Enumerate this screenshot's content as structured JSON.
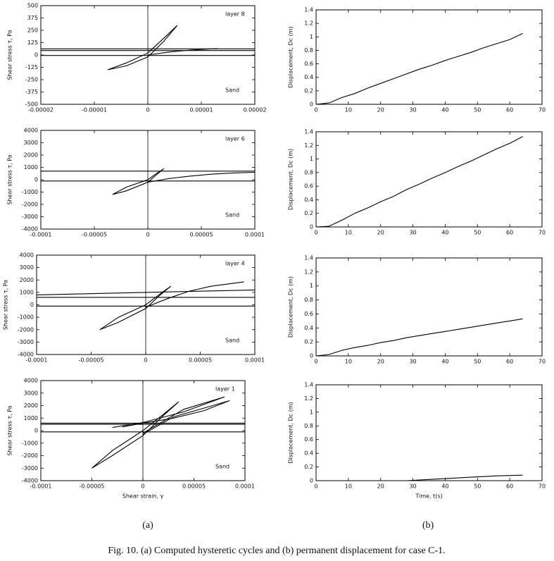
{
  "chart_data": [
    {
      "type": "line",
      "ylabel": "Shear stress τ,  Pa",
      "annotations": [
        "layer 8",
        "Sand"
      ],
      "xlim": [
        -2e-05,
        2e-05
      ],
      "xticks": [
        -2e-05,
        -1e-05,
        0,
        1e-05,
        2e-05
      ],
      "ylim": [
        -500,
        500
      ],
      "yticks": [
        -500,
        -375,
        -250,
        -125,
        0,
        125,
        250,
        375,
        500
      ],
      "series": [
        {
          "color": "#000000",
          "x": [
            -2e-05,
            2e-05
          ],
          "values": [
            62,
            62
          ]
        },
        {
          "color": "#000000",
          "x": [
            -2e-05,
            2e-05
          ],
          "values": [
            45,
            45
          ]
        },
        {
          "color": "#000000",
          "x": [
            -2e-05,
            2e-05
          ],
          "values": [
            -5,
            -5
          ]
        },
        {
          "color": "#000000",
          "x": [
            -7.5e-06,
            -4e-06,
            0,
            3e-06,
            5.5e-06,
            3e-06,
            0,
            -4e-06,
            -7.5e-06
          ],
          "values": [
            -150,
            -110,
            -20,
            140,
            300,
            170,
            20,
            -80,
            -150
          ]
        },
        {
          "color": "#000000",
          "x": [
            0,
            4e-06,
            8e-06,
            1.3e-05
          ],
          "values": [
            0,
            30,
            50,
            65
          ]
        }
      ]
    },
    {
      "type": "line",
      "ylabel": "Displacement, Dc (m)",
      "xlim": [
        0,
        70
      ],
      "xticks": [
        0,
        10,
        20,
        30,
        40,
        50,
        60,
        70
      ],
      "ylim": [
        0,
        1.4
      ],
      "yticks": [
        0,
        0.2,
        0.4,
        0.6,
        0.8,
        1,
        1.2,
        1.4
      ],
      "series": [
        {
          "color": "#000000",
          "x": [
            0,
            4,
            8,
            12,
            16,
            20,
            24,
            28,
            32,
            36,
            40,
            44,
            48,
            52,
            56,
            60,
            64
          ],
          "values": [
            0,
            0.02,
            0.1,
            0.16,
            0.24,
            0.31,
            0.38,
            0.45,
            0.52,
            0.58,
            0.65,
            0.71,
            0.77,
            0.84,
            0.9,
            0.96,
            1.05
          ]
        }
      ]
    },
    {
      "type": "line",
      "ylabel": "Shear stress τ,  Pa",
      "annotations": [
        "layer 6",
        "Sand"
      ],
      "xlim": [
        -0.0001,
        0.0001
      ],
      "xticks": [
        -0.0001,
        -5e-05,
        0,
        5e-05,
        0.0001
      ],
      "ylim": [
        -4000,
        4000
      ],
      "yticks": [
        -4000,
        -3000,
        -2000,
        -1000,
        0,
        1000,
        2000,
        3000,
        4000
      ],
      "series": [
        {
          "color": "#000000",
          "x": [
            -0.0001,
            0.0001
          ],
          "values": [
            700,
            700
          ]
        },
        {
          "color": "#000000",
          "x": [
            -0.0001,
            0.0001
          ],
          "values": [
            -100,
            -100
          ]
        },
        {
          "color": "#000000",
          "x": [
            -3.3e-05,
            -2e-05,
            0,
            8e-06,
            1.5e-05,
            8e-06,
            0,
            -2e-05,
            -3.3e-05
          ],
          "values": [
            -1200,
            -900,
            -200,
            400,
            900,
            500,
            0,
            -600,
            -1200
          ]
        },
        {
          "color": "#000000",
          "x": [
            0,
            2e-05,
            4e-05,
            6e-05,
            8e-05,
            0.0001
          ],
          "values": [
            -200,
            100,
            300,
            450,
            550,
            600
          ]
        }
      ]
    },
    {
      "type": "line",
      "ylabel": "Displacement, Dc (m)",
      "xlim": [
        0,
        70
      ],
      "xticks": [
        0,
        10,
        20,
        30,
        40,
        50,
        60,
        70
      ],
      "ylim": [
        0,
        1.4
      ],
      "yticks": [
        0,
        0.2,
        0.4,
        0.6,
        0.8,
        1,
        1.2,
        1.4
      ],
      "series": [
        {
          "color": "#000000",
          "x": [
            0,
            4,
            8,
            12,
            16,
            20,
            24,
            28,
            32,
            36,
            40,
            44,
            48,
            52,
            56,
            60,
            64
          ],
          "values": [
            0,
            0.01,
            0.1,
            0.2,
            0.28,
            0.37,
            0.45,
            0.55,
            0.63,
            0.72,
            0.8,
            0.89,
            0.97,
            1.06,
            1.15,
            1.23,
            1.33
          ]
        }
      ]
    },
    {
      "type": "line",
      "ylabel": "Shear stress τ,  Pa",
      "annotations": [
        "layer 4",
        "Sand"
      ],
      "xlim": [
        -0.0001,
        0.0001
      ],
      "xticks": [
        -0.0001,
        -5e-05,
        0,
        5e-05,
        0.0001
      ],
      "ylim": [
        -4000,
        4000
      ],
      "yticks": [
        -4000,
        -3000,
        -2000,
        -1000,
        0,
        1000,
        2000,
        3000,
        4000
      ],
      "series": [
        {
          "color": "#000000",
          "x": [
            -0.0001,
            0.0001
          ],
          "values": [
            800,
            1200
          ]
        },
        {
          "color": "#000000",
          "x": [
            -0.0001,
            0.0001
          ],
          "values": [
            600,
            600
          ]
        },
        {
          "color": "#000000",
          "x": [
            -0.0001,
            0.0001
          ],
          "values": [
            -100,
            -100
          ]
        },
        {
          "color": "#000000",
          "x": [
            -4.2e-05,
            -2.5e-05,
            0,
            1.2e-05,
            2.3e-05,
            1.2e-05,
            0,
            -2.5e-05,
            -4.2e-05
          ],
          "values": [
            -2000,
            -1400,
            -300,
            700,
            1500,
            800,
            0,
            -1000,
            -2000
          ]
        },
        {
          "color": "#000000",
          "x": [
            0,
            2e-05,
            4e-05,
            6e-05,
            9e-05
          ],
          "values": [
            -200,
            500,
            1100,
            1500,
            1850
          ]
        }
      ]
    },
    {
      "type": "line",
      "ylabel": "Displacement, Dc (m)",
      "xlim": [
        0,
        70
      ],
      "xticks": [
        0,
        10,
        20,
        30,
        40,
        50,
        60,
        70
      ],
      "ylim": [
        0,
        1.4
      ],
      "yticks": [
        0,
        0.2,
        0.4,
        0.6,
        0.8,
        1,
        1.2,
        1.4
      ],
      "series": [
        {
          "color": "#000000",
          "x": [
            0,
            4,
            8,
            12,
            16,
            20,
            24,
            28,
            32,
            36,
            40,
            44,
            48,
            52,
            56,
            60,
            64
          ],
          "values": [
            0,
            0.02,
            0.08,
            0.12,
            0.15,
            0.19,
            0.22,
            0.26,
            0.29,
            0.32,
            0.35,
            0.38,
            0.41,
            0.44,
            0.47,
            0.5,
            0.53
          ]
        }
      ]
    },
    {
      "type": "line",
      "ylabel": "Shear stress τ,  Pa",
      "xlabel": "Shear strain, γ",
      "annotations": [
        "layer 1",
        "Sand"
      ],
      "xlim": [
        -0.0001,
        0.0001
      ],
      "xticks": [
        -0.0001,
        -5e-05,
        0,
        5e-05,
        0.0001
      ],
      "ylim": [
        -4000,
        4000
      ],
      "yticks": [
        -4000,
        -3000,
        -2000,
        -1000,
        0,
        1000,
        2000,
        3000,
        4000
      ],
      "series": [
        {
          "color": "#000000",
          "x": [
            -0.0001,
            0.0001
          ],
          "values": [
            600,
            600
          ]
        },
        {
          "color": "#000000",
          "x": [
            -0.0001,
            0.0001
          ],
          "values": [
            500,
            500
          ]
        },
        {
          "color": "#000000",
          "x": [
            -0.0001,
            0.0001
          ],
          "values": [
            -100,
            -100
          ]
        },
        {
          "color": "#000000",
          "x": [
            -5e-05,
            -3e-05,
            0,
            2e-05,
            3.5e-05,
            2e-05,
            0,
            -3e-05,
            -5e-05
          ],
          "values": [
            -3000,
            -2000,
            -400,
            1200,
            2300,
            1300,
            0,
            -1600,
            -3000
          ]
        },
        {
          "color": "#000000",
          "x": [
            -2e-05,
            0,
            3e-05,
            6e-05,
            8.5e-05,
            6e-05,
            3e-05,
            0
          ],
          "values": [
            300,
            600,
            1000,
            1600,
            2400,
            1800,
            1100,
            -300
          ]
        },
        {
          "color": "#000000",
          "x": [
            -3e-05,
            0,
            4e-05,
            8e-05,
            4e-05,
            0
          ],
          "values": [
            250,
            650,
            1500,
            2700,
            1700,
            -200
          ]
        }
      ]
    },
    {
      "type": "line",
      "ylabel": "Displacement, Dc (m)",
      "xlabel": "Time, t(s)",
      "xlim": [
        0,
        70
      ],
      "xticks": [
        0,
        10,
        20,
        30,
        40,
        50,
        60,
        70
      ],
      "ylim": [
        0,
        1.4
      ],
      "yticks": [
        0,
        0.2,
        0.4,
        0.6,
        0.8,
        1,
        1.2,
        1.4
      ],
      "series": [
        {
          "color": "#000000",
          "x": [
            0,
            4,
            8,
            12,
            16,
            20,
            24,
            28,
            32,
            36,
            40,
            44,
            48,
            52,
            56,
            60,
            64
          ],
          "values": [
            0,
            0,
            -0.01,
            -0.02,
            -0.02,
            -0.01,
            -0.01,
            0,
            0.01,
            0.02,
            0.03,
            0.04,
            0.05,
            0.06,
            0.07,
            0.075,
            0.08
          ]
        }
      ]
    }
  ],
  "panel_labels": [
    "(a)",
    "(b)"
  ],
  "figure_caption": "Fig. 10. (a) Computed hysteretic cycles and (b) permanent displacement for case C-1."
}
